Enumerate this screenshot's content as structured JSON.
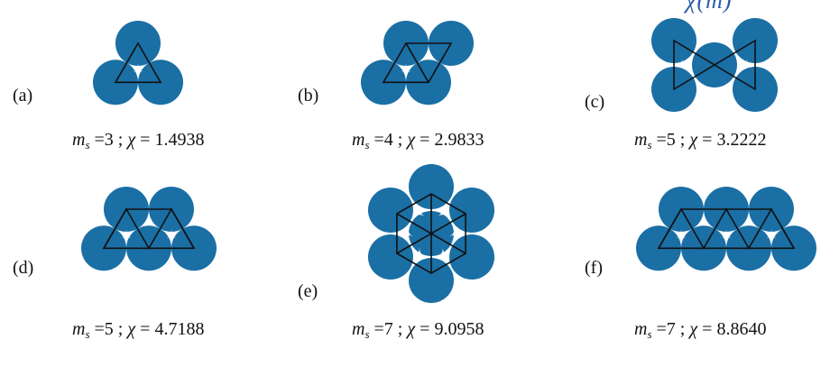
{
  "colors": {
    "disc_fill": "#1a6fa5",
    "triangle_stroke": "#111111",
    "gap_fill": "#ffffff",
    "clipped_text": "#2b5aa8"
  },
  "header_clipped_text": "χ(m)",
  "panels": [
    {
      "id": "a",
      "label": "(a)",
      "m_symbol": "m",
      "m_sub": "s",
      "m_value": "=3 ;",
      "chi_symbol": "χ",
      "chi_value": "= 1.4938"
    },
    {
      "id": "b",
      "label": "(b)",
      "m_symbol": "m",
      "m_sub": "s",
      "m_value": "=4 ;",
      "chi_symbol": "χ",
      "chi_value": "= 2.9833"
    },
    {
      "id": "c",
      "label": "(c)",
      "m_symbol": "m",
      "m_sub": "s",
      "m_value": "=5 ;",
      "chi_symbol": "χ",
      "chi_value": "= 3.2222"
    },
    {
      "id": "d",
      "label": "(d)",
      "m_symbol": "m",
      "m_sub": "s",
      "m_value": "=5 ;",
      "chi_symbol": "χ",
      "chi_value": "= 4.7188"
    },
    {
      "id": "e",
      "label": "(e)",
      "m_symbol": "m",
      "m_sub": "s",
      "m_value": "=7 ;",
      "chi_symbol": "χ",
      "chi_value": "= 9.0958"
    },
    {
      "id": "f",
      "label": "(f)",
      "m_symbol": "m",
      "m_sub": "s",
      "m_value": "=7 ;",
      "chi_symbol": "χ",
      "chi_value": "= 8.8640"
    }
  ]
}
